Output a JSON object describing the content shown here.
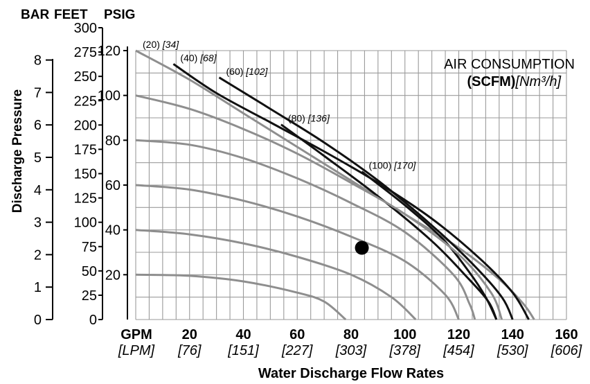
{
  "chart_data": {
    "type": "line",
    "header": {
      "bar": "BAR",
      "feet": "FEET",
      "psig": "PSIG"
    },
    "ylabel": "Discharge Pressure",
    "xlabel": "Water Discharge Flow Rates",
    "x_unit_gpm": "GPM",
    "x_unit_lpm": "[LPM]",
    "x_ticks": [
      {
        "gpm": "20",
        "lpm": "[76]",
        "value": 20
      },
      {
        "gpm": "40",
        "lpm": "[151]",
        "value": 40
      },
      {
        "gpm": "60",
        "lpm": "[227]",
        "value": 60
      },
      {
        "gpm": "80",
        "lpm": "[303]",
        "value": 80
      },
      {
        "gpm": "100",
        "lpm": "[378]",
        "value": 100
      },
      {
        "gpm": "120",
        "lpm": "[454]",
        "value": 120
      },
      {
        "gpm": "140",
        "lpm": "[530]",
        "value": 140
      },
      {
        "gpm": "160",
        "lpm": "[606]",
        "value": 160
      }
    ],
    "xlim": [
      0,
      160
    ],
    "ylim_psig": [
      0,
      120
    ],
    "psig_ticks": [
      "20",
      "40",
      "60",
      "80",
      "100",
      "120"
    ],
    "feet_ticks": [
      "0",
      "25",
      "50",
      "75",
      "100",
      "125",
      "150",
      "175",
      "200",
      "225",
      "250",
      "275",
      "300"
    ],
    "bar_ticks": [
      "0",
      "1",
      "2",
      "3",
      "4",
      "5",
      "6",
      "7",
      "8"
    ],
    "air_title_line1": "AIR CONSUMPTION",
    "air_title_line2_bold": "(SCFM)",
    "air_title_line2_italic": "[Nm³/h]",
    "air_series": [
      {
        "scfm": "(20)",
        "nm3h": "[34]",
        "points": [
          [
            0,
            120
          ],
          [
            20,
            107
          ],
          [
            40,
            92
          ],
          [
            60,
            77
          ],
          [
            80,
            62
          ],
          [
            100,
            47
          ],
          [
            120,
            32
          ],
          [
            135,
            18
          ],
          [
            144,
            7
          ],
          [
            148,
            0
          ]
        ]
      },
      {
        "scfm": "(40)",
        "nm3h": "[68]",
        "points": [
          [
            14,
            114
          ],
          [
            30,
            101
          ],
          [
            50,
            88
          ],
          [
            70,
            75
          ],
          [
            90,
            61
          ],
          [
            110,
            45
          ],
          [
            128,
            27
          ],
          [
            140,
            12
          ],
          [
            146,
            0
          ]
        ]
      },
      {
        "scfm": "(60)",
        "nm3h": "[102]",
        "points": [
          [
            31,
            108
          ],
          [
            50,
            94
          ],
          [
            70,
            79
          ],
          [
            90,
            62
          ],
          [
            110,
            42
          ],
          [
            125,
            25
          ],
          [
            136,
            10
          ],
          [
            140,
            0
          ]
        ]
      },
      {
        "scfm": "(80)",
        "nm3h": "[136]",
        "points": [
          [
            54,
            87
          ],
          [
            70,
            73
          ],
          [
            90,
            55
          ],
          [
            110,
            35
          ],
          [
            123,
            19
          ],
          [
            131,
            8
          ],
          [
            134,
            0
          ]
        ]
      },
      {
        "scfm": "(100)",
        "nm3h": "[170]",
        "points": [
          [
            84,
            66
          ],
          [
            100,
            51
          ],
          [
            114,
            36
          ],
          [
            124,
            21
          ],
          [
            130,
            10
          ],
          [
            134,
            0
          ]
        ]
      }
    ],
    "pressure_curves": [
      {
        "points": [
          [
            0,
            20
          ],
          [
            20,
            19.5
          ],
          [
            40,
            17
          ],
          [
            60,
            12
          ],
          [
            70,
            8
          ],
          [
            78,
            0
          ]
        ]
      },
      {
        "points": [
          [
            0,
            40
          ],
          [
            20,
            38
          ],
          [
            40,
            34
          ],
          [
            60,
            28
          ],
          [
            80,
            20
          ],
          [
            95,
            10
          ],
          [
            104,
            0
          ]
        ]
      },
      {
        "points": [
          [
            0,
            60
          ],
          [
            20,
            58
          ],
          [
            40,
            53
          ],
          [
            60,
            46
          ],
          [
            80,
            37
          ],
          [
            100,
            26
          ],
          [
            115,
            11
          ],
          [
            120,
            0
          ]
        ]
      },
      {
        "points": [
          [
            0,
            80
          ],
          [
            20,
            78
          ],
          [
            40,
            72
          ],
          [
            60,
            63
          ],
          [
            80,
            52
          ],
          [
            100,
            39
          ],
          [
            118,
            20
          ],
          [
            124,
            7
          ],
          [
            126,
            0
          ]
        ]
      },
      {
        "points": [
          [
            0,
            100
          ],
          [
            20,
            94
          ],
          [
            40,
            85
          ],
          [
            60,
            74
          ],
          [
            80,
            61
          ],
          [
            100,
            47
          ],
          [
            120,
            29
          ],
          [
            132,
            12
          ],
          [
            136,
            0
          ]
        ]
      }
    ],
    "marker": {
      "x": 84,
      "y": 32
    }
  }
}
